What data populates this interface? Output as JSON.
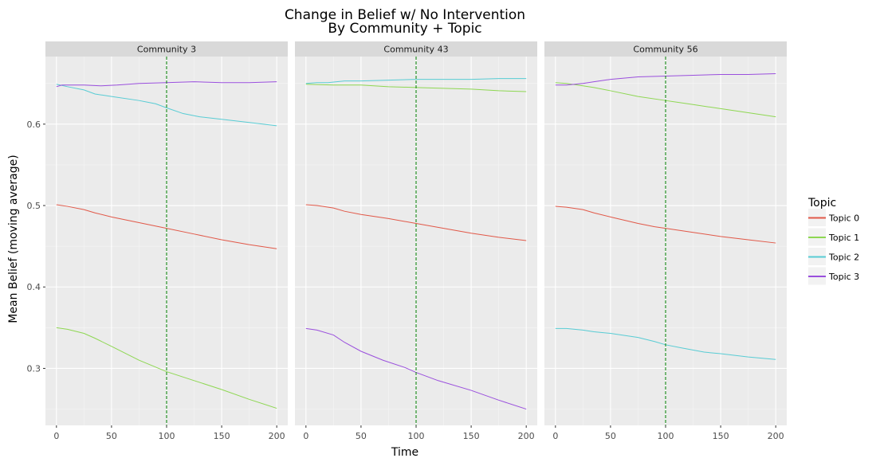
{
  "chart_data": {
    "type": "line",
    "title_lines": [
      "Change in Belief w/ No Intervention",
      "By Community + Topic"
    ],
    "xlabel": "Time",
    "ylabel": "Mean Belief (moving average)",
    "xlim": [
      -10,
      210
    ],
    "ylim": [
      0.23,
      0.683
    ],
    "x_ticks": [
      0,
      50,
      100,
      150,
      200
    ],
    "y_ticks": [
      0.3,
      0.4,
      0.5,
      0.6
    ],
    "y_tick_labels": [
      "0.3",
      "0.4",
      "0.5",
      "0.6"
    ],
    "grid": true,
    "vline": {
      "x": 100,
      "color": "#007f00",
      "style": "dashed"
    },
    "legend": {
      "title": "Topic",
      "placement": "right",
      "entries": [
        {
          "label": "Topic 0",
          "color": "#e15848"
        },
        {
          "label": "Topic 1",
          "color": "#8ed752"
        },
        {
          "label": "Topic 2",
          "color": "#58ccd4"
        },
        {
          "label": "Topic 3",
          "color": "#9a4fdd"
        }
      ]
    },
    "facets": [
      {
        "label": "Community 3",
        "series": [
          {
            "topic": 0,
            "x": [
              0,
              10,
              25,
              35,
              50,
              75,
              100,
              125,
              150,
              175,
              200
            ],
            "y": [
              0.501,
              0.499,
              0.495,
              0.491,
              0.486,
              0.479,
              0.472,
              0.465,
              0.458,
              0.452,
              0.447
            ]
          },
          {
            "topic": 1,
            "x": [
              0,
              10,
              25,
              35,
              50,
              75,
              100,
              125,
              150,
              175,
              200
            ],
            "y": [
              0.35,
              0.348,
              0.343,
              0.337,
              0.327,
              0.31,
              0.296,
              0.285,
              0.274,
              0.262,
              0.251
            ]
          },
          {
            "topic": 2,
            "x": [
              0,
              10,
              25,
              35,
              50,
              75,
              90,
              100,
              115,
              130,
              150,
              175,
              200
            ],
            "y": [
              0.649,
              0.646,
              0.642,
              0.637,
              0.634,
              0.629,
              0.625,
              0.62,
              0.613,
              0.609,
              0.606,
              0.602,
              0.598
            ]
          },
          {
            "topic": 3,
            "x": [
              0,
              5,
              25,
              40,
              55,
              75,
              100,
              125,
              150,
              175,
              200
            ],
            "y": [
              0.646,
              0.648,
              0.648,
              0.647,
              0.648,
              0.65,
              0.651,
              0.652,
              0.651,
              0.651,
              0.652
            ]
          }
        ]
      },
      {
        "label": "Community 43",
        "series": [
          {
            "topic": 0,
            "x": [
              0,
              10,
              25,
              35,
              50,
              75,
              100,
              125,
              150,
              175,
              200
            ],
            "y": [
              0.501,
              0.5,
              0.497,
              0.493,
              0.489,
              0.484,
              0.478,
              0.472,
              0.466,
              0.461,
              0.457
            ]
          },
          {
            "topic": 1,
            "x": [
              0,
              25,
              50,
              75,
              100,
              125,
              150,
              175,
              200
            ],
            "y": [
              0.649,
              0.648,
              0.648,
              0.646,
              0.645,
              0.644,
              0.643,
              0.641,
              0.64
            ]
          },
          {
            "topic": 2,
            "x": [
              0,
              10,
              20,
              35,
              50,
              75,
              100,
              125,
              150,
              175,
              200
            ],
            "y": [
              0.65,
              0.651,
              0.651,
              0.653,
              0.653,
              0.654,
              0.655,
              0.655,
              0.655,
              0.656,
              0.656
            ]
          },
          {
            "topic": 3,
            "x": [
              0,
              10,
              25,
              35,
              50,
              70,
              90,
              100,
              120,
              150,
              175,
              200
            ],
            "y": [
              0.349,
              0.347,
              0.341,
              0.332,
              0.321,
              0.31,
              0.301,
              0.295,
              0.285,
              0.273,
              0.261,
              0.25
            ]
          }
        ]
      },
      {
        "label": "Community 56",
        "series": [
          {
            "topic": 0,
            "x": [
              0,
              10,
              25,
              35,
              50,
              75,
              90,
              100,
              125,
              150,
              175,
              200
            ],
            "y": [
              0.499,
              0.498,
              0.495,
              0.491,
              0.486,
              0.478,
              0.474,
              0.472,
              0.467,
              0.462,
              0.458,
              0.454
            ]
          },
          {
            "topic": 1,
            "x": [
              0,
              10,
              25,
              35,
              50,
              75,
              100,
              125,
              150,
              175,
              200
            ],
            "y": [
              0.651,
              0.65,
              0.647,
              0.645,
              0.641,
              0.634,
              0.629,
              0.624,
              0.619,
              0.614,
              0.609
            ]
          },
          {
            "topic": 2,
            "x": [
              0,
              10,
              25,
              35,
              50,
              75,
              90,
              100,
              115,
              135,
              150,
              175,
              200
            ],
            "y": [
              0.349,
              0.349,
              0.347,
              0.345,
              0.343,
              0.338,
              0.333,
              0.329,
              0.325,
              0.32,
              0.318,
              0.314,
              0.311
            ]
          },
          {
            "topic": 3,
            "x": [
              0,
              10,
              25,
              35,
              50,
              75,
              100,
              125,
              150,
              175,
              200
            ],
            "y": [
              0.648,
              0.648,
              0.65,
              0.652,
              0.655,
              0.658,
              0.659,
              0.66,
              0.661,
              0.661,
              0.662
            ]
          }
        ]
      }
    ]
  }
}
